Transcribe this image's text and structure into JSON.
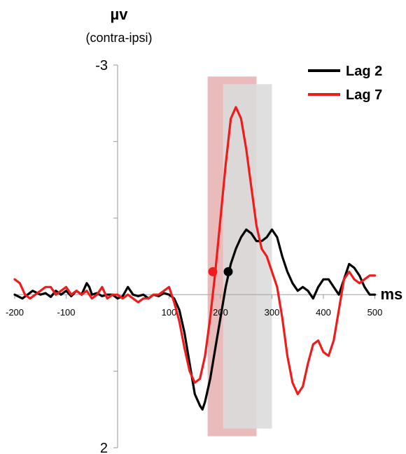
{
  "chart_data": {
    "type": "line",
    "ylabel": "µv",
    "ylabel_sub": "(contra-ipsi)",
    "xlabel": "ms",
    "xlim": [
      -200,
      500
    ],
    "ylim": [
      -3,
      2
    ],
    "y_inverted": true,
    "y_tick_labels": [
      "-3",
      "2"
    ],
    "x_ticks": [
      -200,
      -100,
      100,
      200,
      300,
      400,
      500
    ],
    "x_tick_labels": [
      "-200",
      "-100",
      "100",
      "200",
      "300",
      "400",
      "500"
    ],
    "legend_position": "top-right",
    "shaded_windows": [
      {
        "series": "Lag 7",
        "color": "#e8b4b4",
        "x": [
          175,
          270
        ],
        "y": [
          -2.85,
          1.85
        ]
      },
      {
        "series": "Lag 2",
        "color": "#dcdcdc",
        "x": [
          205,
          300
        ],
        "y": [
          -2.75,
          1.75
        ]
      }
    ],
    "markers": [
      {
        "series": "Lag 7",
        "x": 185,
        "y": -0.3
      },
      {
        "series": "Lag 2",
        "x": 215,
        "y": -0.3
      }
    ],
    "series": [
      {
        "name": "Lag 2",
        "color": "#000000",
        "points": [
          [
            -200,
            0.0
          ],
          [
            -185,
            0.05
          ],
          [
            -175,
            0.0
          ],
          [
            -165,
            -0.05
          ],
          [
            -150,
            0.0
          ],
          [
            -140,
            -0.02
          ],
          [
            -130,
            0.03
          ],
          [
            -120,
            -0.05
          ],
          [
            -110,
            0.0
          ],
          [
            -100,
            -0.05
          ],
          [
            -90,
            0.02
          ],
          [
            -80,
            -0.05
          ],
          [
            -70,
            0.0
          ],
          [
            -60,
            -0.15
          ],
          [
            -55,
            -0.1
          ],
          [
            -50,
            0.0
          ],
          [
            -40,
            -0.02
          ],
          [
            -30,
            0.02
          ],
          [
            -20,
            0.0
          ],
          [
            -10,
            0.0
          ],
          [
            0,
            0.05
          ],
          [
            10,
            0.02
          ],
          [
            20,
            -0.1
          ],
          [
            30,
            0.0
          ],
          [
            40,
            0.02
          ],
          [
            50,
            0.0
          ],
          [
            60,
            0.05
          ],
          [
            70,
            0.0
          ],
          [
            80,
            0.02
          ],
          [
            90,
            -0.02
          ],
          [
            100,
            0.0
          ],
          [
            110,
            0.05
          ],
          [
            120,
            0.2
          ],
          [
            130,
            0.5
          ],
          [
            140,
            0.9
          ],
          [
            150,
            1.3
          ],
          [
            160,
            1.45
          ],
          [
            165,
            1.5
          ],
          [
            170,
            1.4
          ],
          [
            180,
            1.1
          ],
          [
            190,
            0.7
          ],
          [
            200,
            0.3
          ],
          [
            210,
            -0.1
          ],
          [
            220,
            -0.4
          ],
          [
            230,
            -0.6
          ],
          [
            240,
            -0.75
          ],
          [
            250,
            -0.85
          ],
          [
            260,
            -0.8
          ],
          [
            270,
            -0.7
          ],
          [
            280,
            -0.7
          ],
          [
            290,
            -0.75
          ],
          [
            300,
            -0.85
          ],
          [
            310,
            -0.75
          ],
          [
            320,
            -0.5
          ],
          [
            330,
            -0.3
          ],
          [
            340,
            -0.15
          ],
          [
            350,
            -0.05
          ],
          [
            360,
            -0.1
          ],
          [
            370,
            -0.05
          ],
          [
            380,
            0.05
          ],
          [
            390,
            -0.1
          ],
          [
            400,
            -0.2
          ],
          [
            410,
            -0.2
          ],
          [
            420,
            -0.1
          ],
          [
            430,
            0.0
          ],
          [
            440,
            -0.2
          ],
          [
            450,
            -0.4
          ],
          [
            460,
            -0.35
          ],
          [
            470,
            -0.25
          ],
          [
            480,
            -0.1
          ],
          [
            490,
            0.0
          ],
          [
            500,
            0.0
          ]
        ]
      },
      {
        "name": "Lag 7",
        "color": "#ee1c1c",
        "points": [
          [
            -200,
            -0.2
          ],
          [
            -190,
            -0.15
          ],
          [
            -180,
            0.0
          ],
          [
            -170,
            0.05
          ],
          [
            -160,
            0.0
          ],
          [
            -150,
            -0.05
          ],
          [
            -140,
            -0.1
          ],
          [
            -130,
            -0.1
          ],
          [
            -120,
            0.0
          ],
          [
            -110,
            -0.05
          ],
          [
            -100,
            -0.1
          ],
          [
            -90,
            0.0
          ],
          [
            -80,
            -0.05
          ],
          [
            -70,
            0.0
          ],
          [
            -60,
            -0.05
          ],
          [
            -50,
            0.05
          ],
          [
            -40,
            0.0
          ],
          [
            -30,
            -0.1
          ],
          [
            -20,
            0.05
          ],
          [
            -10,
            0.0
          ],
          [
            0,
            0.0
          ],
          [
            10,
            0.05
          ],
          [
            20,
            0.0
          ],
          [
            30,
            0.05
          ],
          [
            40,
            0.1
          ],
          [
            50,
            0.05
          ],
          [
            60,
            0.05
          ],
          [
            70,
            0.0
          ],
          [
            80,
            0.0
          ],
          [
            90,
            -0.05
          ],
          [
            100,
            -0.1
          ],
          [
            110,
            0.1
          ],
          [
            120,
            0.35
          ],
          [
            130,
            0.7
          ],
          [
            140,
            1.0
          ],
          [
            150,
            1.15
          ],
          [
            160,
            1.1
          ],
          [
            170,
            0.8
          ],
          [
            180,
            0.3
          ],
          [
            190,
            -0.3
          ],
          [
            200,
            -1.0
          ],
          [
            210,
            -1.7
          ],
          [
            220,
            -2.3
          ],
          [
            230,
            -2.45
          ],
          [
            240,
            -2.3
          ],
          [
            250,
            -1.9
          ],
          [
            260,
            -1.4
          ],
          [
            270,
            -0.9
          ],
          [
            280,
            -0.6
          ],
          [
            290,
            -0.5
          ],
          [
            300,
            -0.3
          ],
          [
            310,
            -0.1
          ],
          [
            320,
            0.3
          ],
          [
            330,
            0.8
          ],
          [
            340,
            1.15
          ],
          [
            350,
            1.3
          ],
          [
            360,
            1.2
          ],
          [
            370,
            0.9
          ],
          [
            380,
            0.65
          ],
          [
            390,
            0.6
          ],
          [
            400,
            0.75
          ],
          [
            410,
            0.8
          ],
          [
            420,
            0.6
          ],
          [
            430,
            0.2
          ],
          [
            440,
            -0.2
          ],
          [
            450,
            -0.3
          ],
          [
            460,
            -0.2
          ],
          [
            470,
            -0.15
          ],
          [
            480,
            -0.2
          ],
          [
            490,
            -0.25
          ],
          [
            500,
            -0.25
          ]
        ]
      }
    ]
  }
}
